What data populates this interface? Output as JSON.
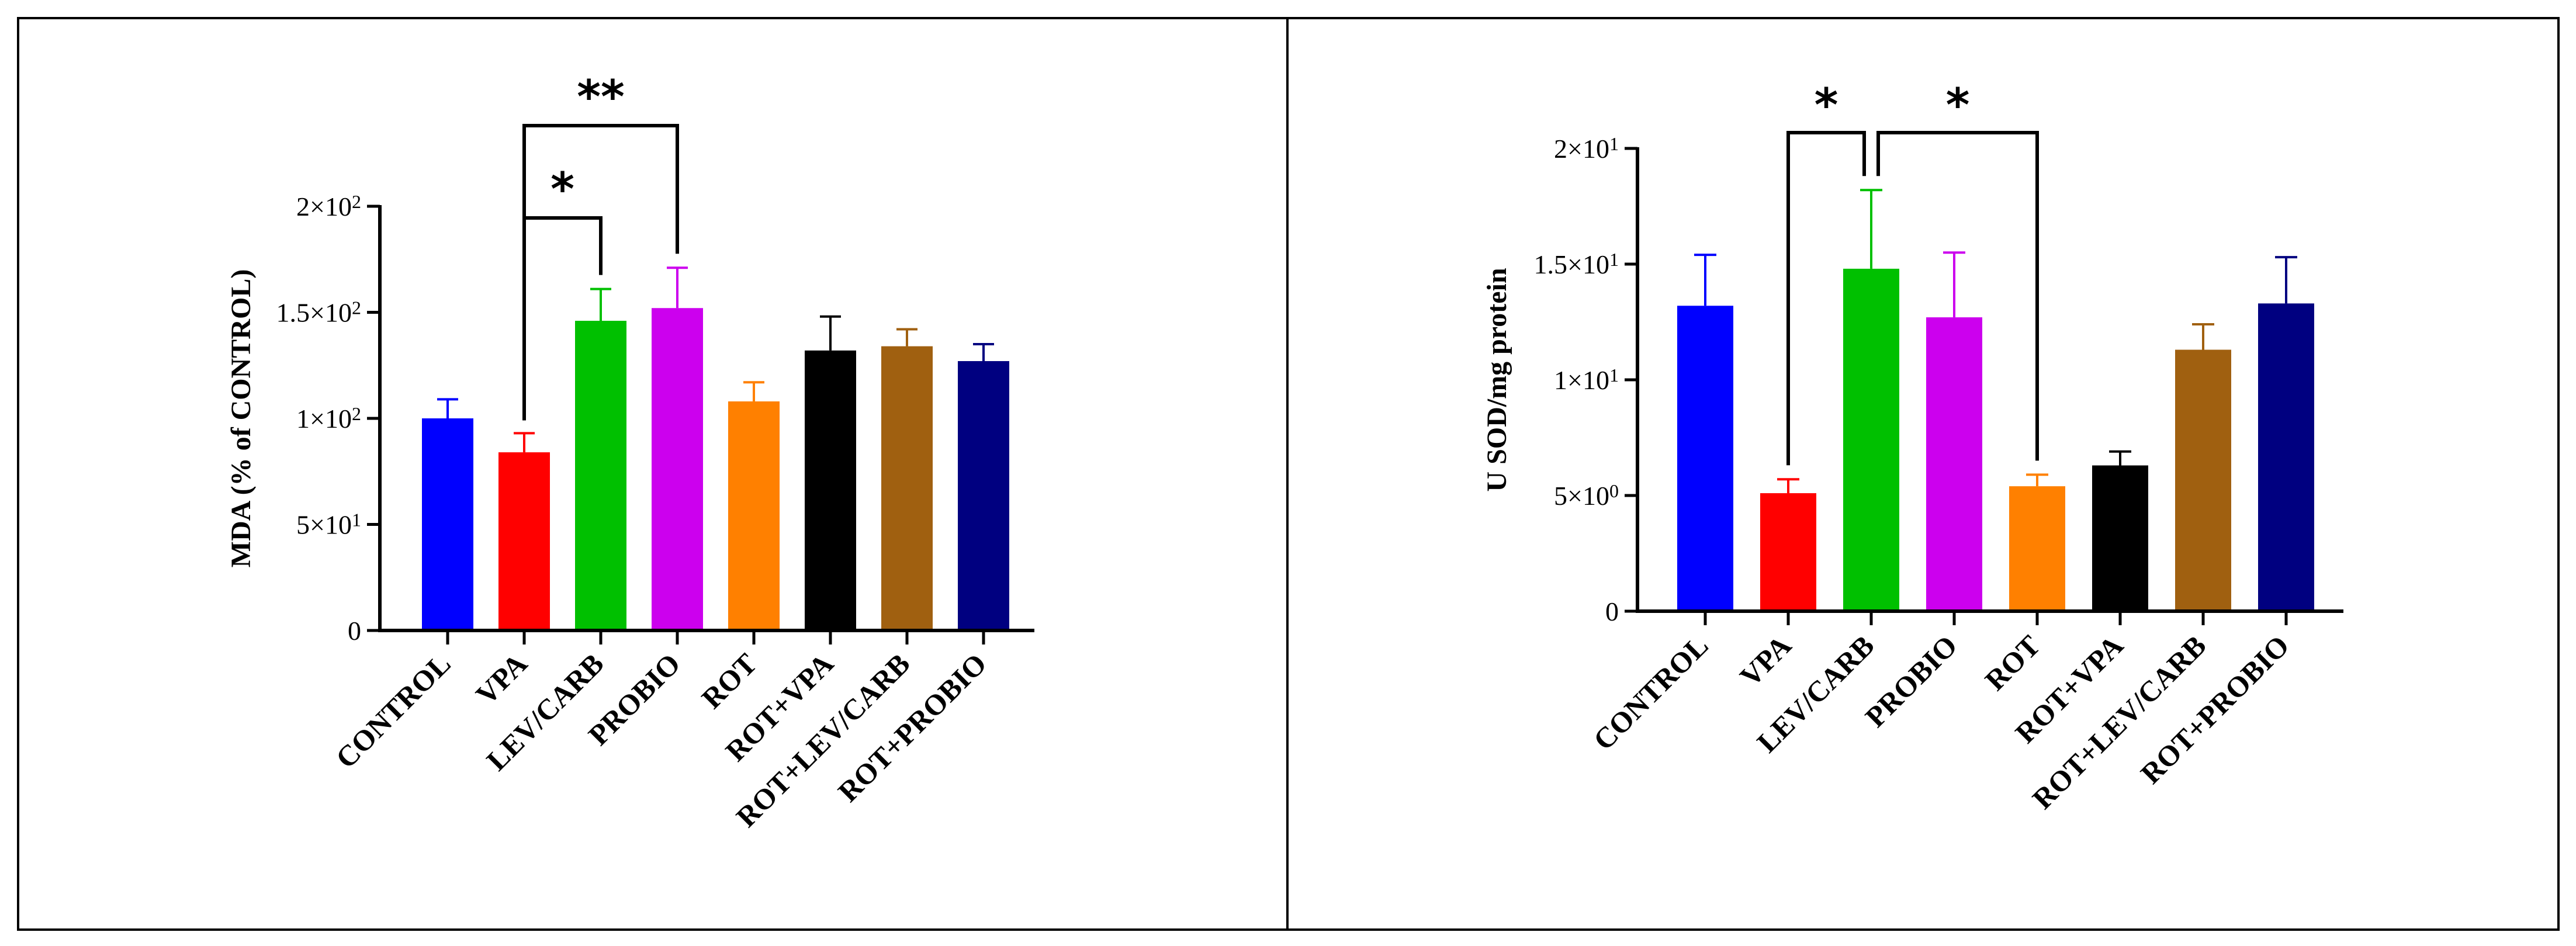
{
  "chart_data": [
    {
      "type": "bar",
      "panel": "left",
      "categories": [
        "CONTROL",
        "VPA",
        "LEV/CARB",
        "PROBIO",
        "ROT",
        "ROT+VPA",
        "ROT+LEV/CARB",
        "ROT+PROBIO"
      ],
      "values": [
        100,
        84,
        146,
        152,
        108,
        132,
        134,
        127
      ],
      "errors": [
        9,
        9,
        15,
        19,
        9,
        16,
        8,
        8
      ],
      "colors": [
        "#0000ff",
        "#ff0000",
        "#00c000",
        "#cc00ee",
        "#ff8000",
        "#000000",
        "#a06010",
        "#000080"
      ],
      "ylabel": "MDA (% of CONTROL)",
      "ylim": [
        0,
        200
      ],
      "yticks": [
        0,
        50,
        100,
        150,
        200
      ],
      "ytick_labels": [
        {
          "text": "0",
          "sup": ""
        },
        {
          "text": "5×10",
          "sup": "1"
        },
        {
          "text": "1×10",
          "sup": "2"
        },
        {
          "text": "1.5×10",
          "sup": "2"
        },
        {
          "text": "2×10",
          "sup": "2"
        }
      ],
      "significance": [
        {
          "from": "VPA",
          "to": "LEV/CARB",
          "label": "*"
        },
        {
          "from": "VPA",
          "to": "PROBIO",
          "label": "**"
        }
      ]
    },
    {
      "type": "bar",
      "panel": "right",
      "categories": [
        "CONTROL",
        "VPA",
        "LEV/CARB",
        "PROBIO",
        "ROT",
        "ROT+VPA",
        "ROT+LEV/CARB",
        "ROT+PROBIO"
      ],
      "values": [
        13.2,
        5.1,
        14.8,
        12.7,
        5.4,
        6.3,
        11.3,
        13.3
      ],
      "errors": [
        2.2,
        0.6,
        3.4,
        2.8,
        0.5,
        0.6,
        1.1,
        2.0
      ],
      "colors": [
        "#0000ff",
        "#ff0000",
        "#00c000",
        "#cc00ee",
        "#ff8000",
        "#000000",
        "#a06010",
        "#000080"
      ],
      "ylabel": "U SOD/mg protein",
      "ylim": [
        0,
        20
      ],
      "yticks": [
        0,
        5,
        10,
        15,
        20
      ],
      "ytick_labels": [
        {
          "text": "0",
          "sup": ""
        },
        {
          "text": "5×10",
          "sup": "0"
        },
        {
          "text": "1×10",
          "sup": "1"
        },
        {
          "text": "1.5×10",
          "sup": "1"
        },
        {
          "text": "2×10",
          "sup": "1"
        }
      ],
      "significance": [
        {
          "from": "VPA",
          "to": "LEV/CARB",
          "label": "*"
        },
        {
          "from": "LEV/CARB",
          "to": "ROT",
          "label": "*"
        }
      ]
    }
  ]
}
